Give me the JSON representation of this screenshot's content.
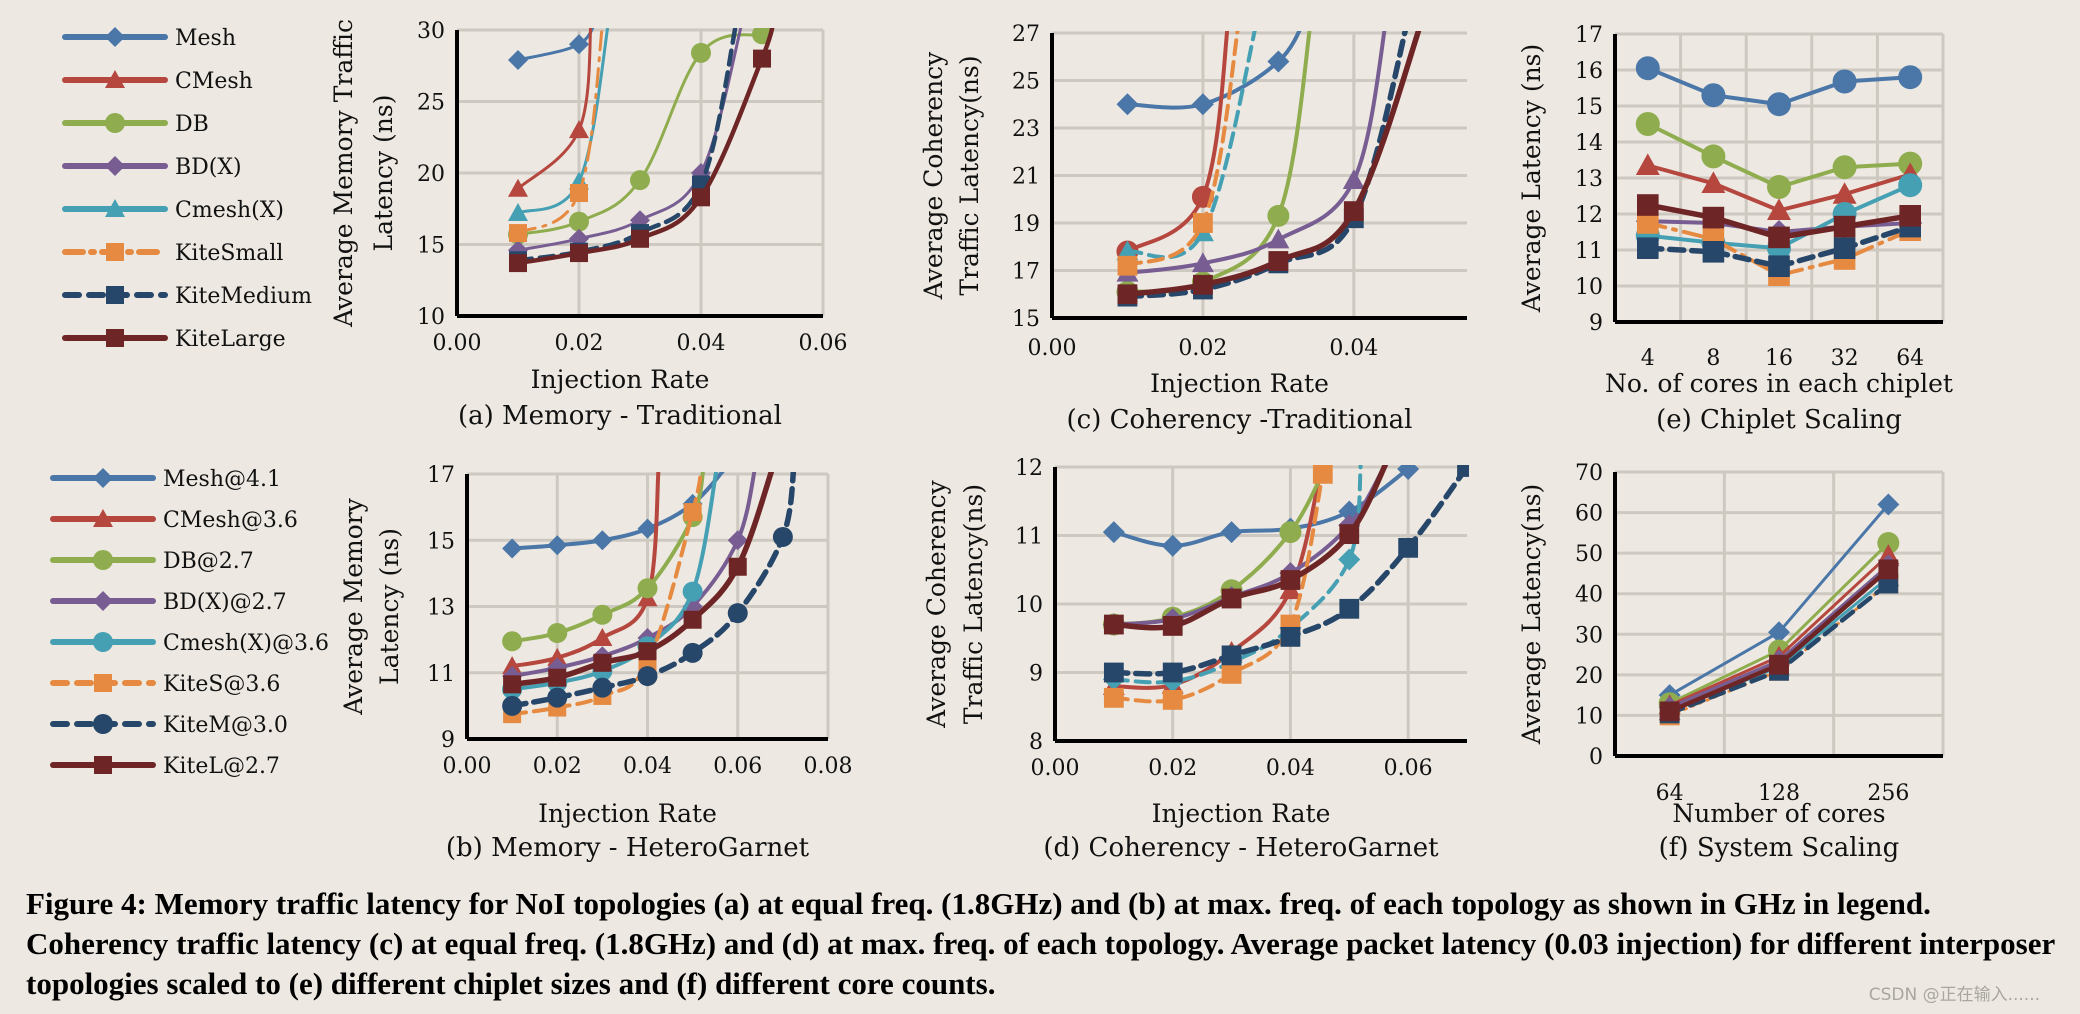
{
  "figure": {
    "caption": "Figure 4: Memory traffic latency for NoI topologies (a) at equal freq. (1.8GHz) and (b) at max. freq. of each topology as shown in GHz in legend. Coherency traffic latency (c) at equal freq. (1.8GHz) and (d) at max. freq. of each topology. Average packet latency (0.03 injection) for different interposer topologies scaled to (e) different chiplet sizes and (f) different core counts.",
    "watermark": "CSDN @正在输入......"
  },
  "styles": {
    "Mesh": {
      "color": "#4a76a8",
      "marker": "diamond",
      "dash": "solid"
    },
    "CMesh": {
      "color": "#b5473f",
      "marker": "triangle",
      "dash": "solid"
    },
    "DB": {
      "color": "#8fad4e",
      "marker": "circle",
      "dash": "solid"
    },
    "BDX": {
      "color": "#785d93",
      "marker": "diamond",
      "dash": "solid"
    },
    "CmeshX": {
      "color": "#45a0b4",
      "marker": "triangle",
      "dash": "solid"
    },
    "KiteS": {
      "color": "#e58a40",
      "marker": "square",
      "dash": "dashdot"
    },
    "KiteM": {
      "color": "#27476a",
      "marker": "square",
      "dash": "dash"
    },
    "KiteL": {
      "color": "#6e2526",
      "marker": "square",
      "dash": "solid"
    }
  },
  "legend_top": [
    {
      "key": "Mesh",
      "label": "Mesh"
    },
    {
      "key": "CMesh",
      "label": "CMesh"
    },
    {
      "key": "DB",
      "label": "DB"
    },
    {
      "key": "BDX",
      "label": "BD(X)"
    },
    {
      "key": "CmeshX",
      "label": "Cmesh(X)"
    },
    {
      "key": "KiteS",
      "label": "KiteSmall"
    },
    {
      "key": "KiteM",
      "label": "KiteMedium"
    },
    {
      "key": "KiteL",
      "label": "KiteLarge"
    }
  ],
  "legend_bottom": [
    {
      "key": "Mesh",
      "label": "Mesh@4.1"
    },
    {
      "key": "CMesh",
      "label": "CMesh@3.6"
    },
    {
      "key": "DB",
      "label": "DB@2.7"
    },
    {
      "key": "BDX",
      "label": "BD(X)@2.7"
    },
    {
      "key": "CmeshX",
      "label": "Cmesh(X)@3.6",
      "marker": "circle"
    },
    {
      "key": "KiteS",
      "label": "KiteS@3.6",
      "dash": "dash"
    },
    {
      "key": "KiteM",
      "label": "KiteM@3.0",
      "marker": "circle"
    },
    {
      "key": "KiteL",
      "label": "KiteL@2.7"
    }
  ],
  "chart_data": [
    {
      "id": "a",
      "type": "line",
      "title": "(a) Memory - Traditional",
      "xlabel": "Injection Rate",
      "ylabel": [
        "Average Memory Traffic",
        "Latency (ns)"
      ],
      "xlim": [
        0,
        0.06
      ],
      "ylim": [
        10,
        30
      ],
      "xticks": [
        0.0,
        0.02,
        0.04,
        0.06
      ],
      "yticks": [
        10,
        15,
        20,
        25,
        30
      ],
      "xtick_labels": [
        "0.00",
        "0.02",
        "0.04",
        "0.06"
      ],
      "grid": true,
      "series": [
        {
          "key": "Mesh",
          "x": [
            0.01,
            0.02,
            0.023
          ],
          "y": [
            27.9,
            29.0,
            31
          ]
        },
        {
          "key": "CMesh",
          "x": [
            0.01,
            0.02,
            0.022
          ],
          "y": [
            18.9,
            23.0,
            31
          ]
        },
        {
          "key": "DB",
          "x": [
            0.01,
            0.02,
            0.03,
            0.04,
            0.05
          ],
          "y": [
            15.7,
            16.6,
            19.5,
            28.4,
            29.7
          ]
        },
        {
          "key": "BDX",
          "x": [
            0.01,
            0.02,
            0.03,
            0.04,
            0.047
          ],
          "y": [
            14.6,
            15.4,
            16.7,
            20.0,
            31
          ]
        },
        {
          "key": "CmeshX",
          "x": [
            0.01,
            0.02,
            0.025
          ],
          "y": [
            17.2,
            19.4,
            31
          ]
        },
        {
          "key": "KiteS",
          "x": [
            0.01,
            0.02,
            0.024
          ],
          "y": [
            15.8,
            18.6,
            31
          ]
        },
        {
          "key": "KiteM",
          "x": [
            0.01,
            0.02,
            0.03,
            0.04,
            0.046
          ],
          "y": [
            13.9,
            14.5,
            15.8,
            19.2,
            31
          ]
        },
        {
          "key": "KiteL",
          "x": [
            0.01,
            0.02,
            0.03,
            0.04,
            0.05,
            0.052
          ],
          "y": [
            13.7,
            14.4,
            15.4,
            18.3,
            28.0,
            31
          ]
        }
      ]
    },
    {
      "id": "c",
      "type": "line",
      "title": "(c) Coherency -Traditional",
      "xlabel": "Injection Rate",
      "ylabel": [
        "Average Coherency",
        "Traffic Latency(ns)"
      ],
      "xlim": [
        0,
        0.055
      ],
      "ylim": [
        15,
        27
      ],
      "xticks": [
        0.0,
        0.02,
        0.04
      ],
      "yticks": [
        15,
        17,
        19,
        21,
        23,
        25,
        27
      ],
      "xtick_labels": [
        "0.00",
        "0.02",
        "0.04"
      ],
      "grid": true,
      "series": [
        {
          "key": "Mesh",
          "x": [
            0.01,
            0.02,
            0.03,
            0.034
          ],
          "y": [
            24.0,
            24.0,
            25.8,
            28
          ]
        },
        {
          "key": "CMesh",
          "x": [
            0.01,
            0.02,
            0.0235
          ],
          "y": [
            17.8,
            20.1,
            28
          ],
          "marker": "circle"
        },
        {
          "key": "DB",
          "x": [
            0.01,
            0.02,
            0.03,
            0.0345
          ],
          "y": [
            16.1,
            16.5,
            19.3,
            28
          ]
        },
        {
          "key": "BDX",
          "x": [
            0.01,
            0.02,
            0.03,
            0.04,
            0.0445
          ],
          "y": [
            16.9,
            17.3,
            18.3,
            20.8,
            28
          ],
          "marker": "triangle"
        },
        {
          "key": "CmeshX",
          "x": [
            0.01,
            0.02,
            0.0275
          ],
          "y": [
            17.8,
            18.6,
            28
          ],
          "dash": "dash"
        },
        {
          "key": "KiteS",
          "x": [
            0.01,
            0.02,
            0.025
          ],
          "y": [
            17.2,
            19.0,
            28
          ],
          "dash": "dash"
        },
        {
          "key": "KiteM",
          "x": [
            0.01,
            0.02,
            0.03,
            0.04,
            0.0475
          ],
          "y": [
            15.9,
            16.2,
            17.3,
            19.2,
            28
          ]
        },
        {
          "key": "KiteL",
          "x": [
            0.01,
            0.02,
            0.03,
            0.04,
            0.0495
          ],
          "y": [
            16.0,
            16.4,
            17.4,
            19.5,
            28
          ]
        }
      ]
    },
    {
      "id": "e",
      "type": "line",
      "title": "(e) Chiplet Scaling",
      "xlabel": "No. of cores in each chiplet",
      "ylabel": [
        "Average Latency (ns)"
      ],
      "categories": [
        "4",
        "8",
        "16",
        "32",
        "64"
      ],
      "ylim": [
        9,
        17
      ],
      "yticks": [
        9,
        10,
        11,
        12,
        13,
        14,
        15,
        16,
        17
      ],
      "grid": true,
      "series": [
        {
          "key": "Mesh",
          "marker": "circle",
          "y": [
            16.05,
            15.3,
            15.05,
            15.68,
            15.8
          ]
        },
        {
          "key": "DB",
          "y": [
            14.5,
            13.6,
            12.75,
            13.3,
            13.4
          ]
        },
        {
          "key": "CMesh",
          "y": [
            13.35,
            12.85,
            12.1,
            12.55,
            13.1
          ]
        },
        {
          "key": "BDX",
          "y": [
            11.8,
            11.75,
            11.5,
            11.65,
            11.75
          ]
        },
        {
          "key": "CmeshX",
          "marker": "circle",
          "y": [
            11.4,
            11.2,
            11.05,
            12.0,
            12.8
          ]
        },
        {
          "key": "KiteS",
          "y": [
            11.75,
            11.3,
            10.3,
            10.75,
            11.55
          ]
        },
        {
          "key": "KiteM",
          "y": [
            11.05,
            10.95,
            10.55,
            11.05,
            11.65
          ]
        },
        {
          "key": "KiteL",
          "y": [
            12.25,
            11.9,
            11.35,
            11.65,
            11.95
          ]
        }
      ]
    },
    {
      "id": "b",
      "type": "line",
      "title": "(b) Memory - HeteroGarnet",
      "xlabel": "Injection Rate",
      "ylabel": [
        "Average Memory",
        "Latency (ns)"
      ],
      "xlim": [
        0,
        0.08
      ],
      "ylim": [
        9,
        17
      ],
      "xticks": [
        0.0,
        0.02,
        0.04,
        0.06,
        0.08
      ],
      "yticks": [
        9,
        11,
        13,
        15,
        17
      ],
      "xtick_labels": [
        "0.00",
        "0.02",
        "0.04",
        "0.06",
        "0.08"
      ],
      "grid": true,
      "series": [
        {
          "key": "Mesh",
          "x": [
            0.01,
            0.02,
            0.03,
            0.04,
            0.05,
            0.058
          ],
          "y": [
            14.75,
            14.85,
            15.0,
            15.35,
            16.1,
            17.3
          ]
        },
        {
          "key": "CMesh",
          "x": [
            0.01,
            0.02,
            0.03,
            0.04,
            0.0425
          ],
          "y": [
            11.2,
            11.45,
            12.05,
            13.25,
            17.3
          ]
        },
        {
          "key": "DB",
          "x": [
            0.01,
            0.02,
            0.03,
            0.04,
            0.05,
            0.0525
          ],
          "y": [
            11.95,
            12.2,
            12.75,
            13.55,
            15.7,
            17.3
          ]
        },
        {
          "key": "BDX",
          "x": [
            0.01,
            0.02,
            0.03,
            0.04,
            0.05,
            0.06,
            0.064
          ],
          "y": [
            10.9,
            11.15,
            11.5,
            12.05,
            13.0,
            15.0,
            17.3
          ]
        },
        {
          "key": "CmeshX",
          "marker": "circle",
          "x": [
            0.01,
            0.02,
            0.03,
            0.04,
            0.05,
            0.0555
          ],
          "y": [
            10.5,
            10.7,
            11.05,
            11.8,
            13.45,
            17.3
          ]
        },
        {
          "key": "KiteS",
          "dash": "dash",
          "x": [
            0.01,
            0.02,
            0.03,
            0.04,
            0.05,
            0.052
          ],
          "y": [
            9.75,
            9.95,
            10.3,
            11.3,
            15.85,
            17.3
          ]
        },
        {
          "key": "KiteM",
          "marker": "circle",
          "x": [
            0.01,
            0.02,
            0.03,
            0.04,
            0.05,
            0.06,
            0.07,
            0.0725
          ],
          "y": [
            10.0,
            10.25,
            10.55,
            10.9,
            11.6,
            12.8,
            15.1,
            17.3
          ]
        },
        {
          "key": "KiteL",
          "x": [
            0.01,
            0.02,
            0.03,
            0.04,
            0.05,
            0.06,
            0.068
          ],
          "y": [
            10.65,
            10.85,
            11.3,
            11.65,
            12.6,
            14.2,
            17.3
          ]
        }
      ]
    },
    {
      "id": "d",
      "type": "line",
      "title": "(d) Coherency - HeteroGarnet",
      "xlabel": "Injection Rate",
      "ylabel": [
        "Average Coherency",
        "Traffic Latency(ns)"
      ],
      "xlim": [
        0,
        0.07
      ],
      "ylim": [
        8,
        12
      ],
      "xticks": [
        0.0,
        0.02,
        0.04,
        0.06
      ],
      "yticks": [
        8,
        9,
        10,
        11,
        12
      ],
      "xtick_labels": [
        "0.00",
        "0.02",
        "0.04",
        "0.06"
      ],
      "grid": true,
      "series": [
        {
          "key": "Mesh",
          "x": [
            0.01,
            0.02,
            0.03,
            0.04,
            0.05,
            0.06
          ],
          "y": [
            11.05,
            10.85,
            11.05,
            11.1,
            11.35,
            11.97
          ]
        },
        {
          "key": "CMesh",
          "x": [
            0.01,
            0.02,
            0.03,
            0.04,
            0.0455
          ],
          "y": [
            8.8,
            8.82,
            9.3,
            10.2,
            12.1
          ]
        },
        {
          "key": "DB",
          "marker": "circle",
          "x": [
            0.01,
            0.02,
            0.03,
            0.04,
            0.0465
          ],
          "y": [
            9.7,
            9.8,
            10.2,
            11.05,
            12.1
          ]
        },
        {
          "key": "BDX",
          "x": [
            0.01,
            0.02,
            0.03,
            0.04,
            0.05,
            0.0565
          ],
          "y": [
            9.7,
            9.78,
            10.1,
            10.45,
            11.15,
            12.1
          ]
        },
        {
          "key": "CmeshX",
          "dash": "dash",
          "marker": "diamond",
          "x": [
            0.01,
            0.02,
            0.03,
            0.04,
            0.05,
            0.052
          ],
          "y": [
            8.9,
            8.87,
            9.15,
            9.65,
            10.65,
            12.1
          ]
        },
        {
          "key": "KiteS",
          "dash": "dash",
          "x": [
            0.01,
            0.02,
            0.03,
            0.04,
            0.0455
          ],
          "y": [
            8.63,
            8.6,
            8.98,
            9.7,
            11.9
          ]
        },
        {
          "key": "KiteM",
          "x": [
            0.01,
            0.02,
            0.03,
            0.04,
            0.05,
            0.06,
            0.07
          ],
          "y": [
            9.0,
            9.0,
            9.25,
            9.52,
            9.93,
            10.82,
            12.0
          ]
        },
        {
          "key": "KiteL",
          "x": [
            0.01,
            0.02,
            0.03,
            0.04,
            0.05,
            0.0565
          ],
          "y": [
            9.7,
            9.68,
            10.08,
            10.35,
            11.02,
            12.1
          ]
        }
      ]
    },
    {
      "id": "f",
      "type": "line",
      "title": "(f) System Scaling",
      "xlabel": "Number of cores",
      "ylabel": [
        "Average  Latency(ns)"
      ],
      "categories": [
        "64",
        "128",
        "256"
      ],
      "ylim": [
        0,
        70
      ],
      "yticks": [
        0,
        10,
        20,
        30,
        40,
        50,
        60,
        70
      ],
      "grid": true,
      "series": [
        {
          "key": "Mesh",
          "y": [
            15.0,
            30.5,
            62.0
          ]
        },
        {
          "key": "DB",
          "marker": "circle",
          "y": [
            13.0,
            26.0,
            52.5
          ]
        },
        {
          "key": "CMesh",
          "y": [
            12.5,
            24.5,
            49.5
          ]
        },
        {
          "key": "BDX",
          "y": [
            12.0,
            23.5,
            47.0
          ]
        },
        {
          "key": "CmeshX",
          "y": [
            11.0,
            22.0,
            44.0
          ]
        },
        {
          "key": "KiteS",
          "dash": "dot",
          "y": [
            10.0,
            21.0,
            42.5
          ]
        },
        {
          "key": "KiteM",
          "y": [
            10.5,
            21.0,
            42.5
          ]
        },
        {
          "key": "KiteL",
          "y": [
            11.0,
            22.5,
            46.0
          ]
        }
      ]
    }
  ]
}
